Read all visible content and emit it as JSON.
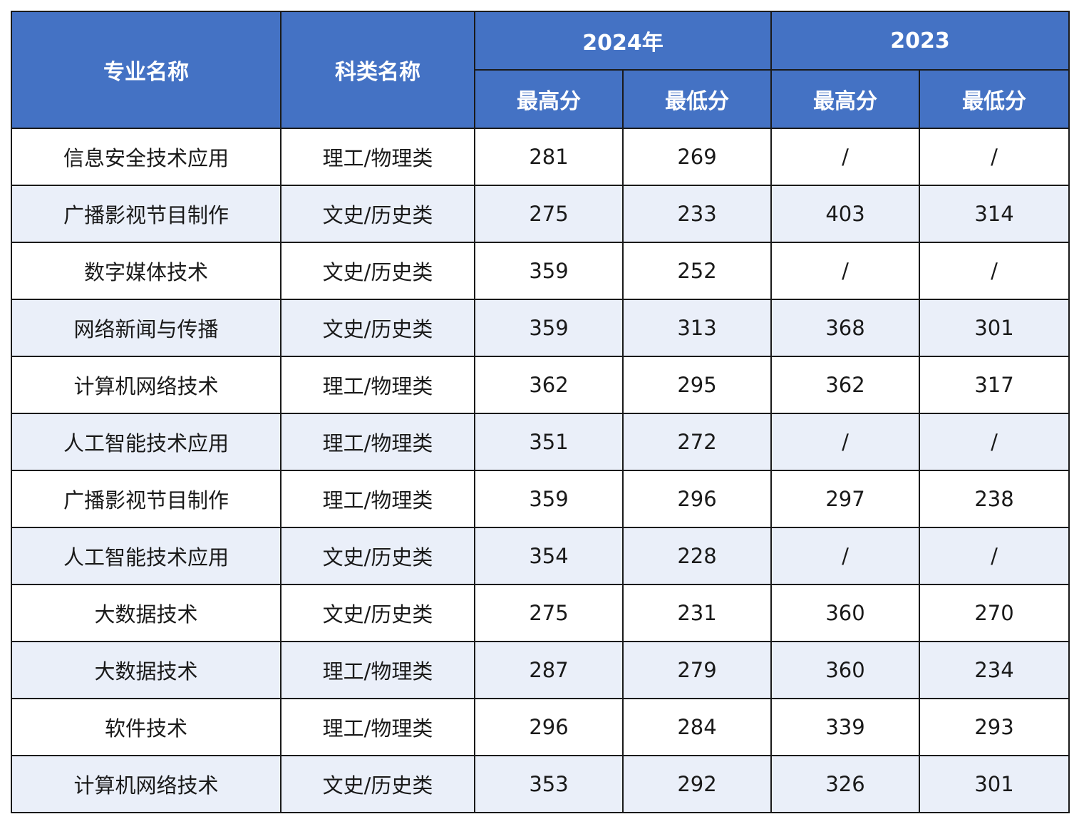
{
  "colors": {
    "header_bg": "#4472c4",
    "header_text": "#ffffff",
    "row_alt_bg": "#eaeff9",
    "border": "#1a1a1a"
  },
  "header": {
    "major": "专业名称",
    "category": "科类名称",
    "year_2024": "2024年",
    "year_2023": "2023",
    "max_2024": "最高分",
    "min_2024": "最低分",
    "max_2023": "最高分",
    "min_2023": "最低分"
  },
  "rows": [
    {
      "major": "信息安全技术应用",
      "category": "理工/物理类",
      "max_2024": "281",
      "min_2024": "269",
      "max_2023": "/",
      "min_2023": "/"
    },
    {
      "major": "广播影视节目制作",
      "category": "文史/历史类",
      "max_2024": "275",
      "min_2024": "233",
      "max_2023": "403",
      "min_2023": "314"
    },
    {
      "major": "数字媒体技术",
      "category": "文史/历史类",
      "max_2024": "359",
      "min_2024": "252",
      "max_2023": "/",
      "min_2023": "/"
    },
    {
      "major": "网络新闻与传播",
      "category": "文史/历史类",
      "max_2024": "359",
      "min_2024": "313",
      "max_2023": "368",
      "min_2023": "301"
    },
    {
      "major": "计算机网络技术",
      "category": "理工/物理类",
      "max_2024": "362",
      "min_2024": "295",
      "max_2023": "362",
      "min_2023": "317"
    },
    {
      "major": "人工智能技术应用",
      "category": "理工/物理类",
      "max_2024": "351",
      "min_2024": "272",
      "max_2023": "/",
      "min_2023": "/"
    },
    {
      "major": "广播影视节目制作",
      "category": "理工/物理类",
      "max_2024": "359",
      "min_2024": "296",
      "max_2023": "297",
      "min_2023": "238"
    },
    {
      "major": "人工智能技术应用",
      "category": "文史/历史类",
      "max_2024": "354",
      "min_2024": "228",
      "max_2023": "/",
      "min_2023": "/"
    },
    {
      "major": "大数据技术",
      "category": "文史/历史类",
      "max_2024": "275",
      "min_2024": "231",
      "max_2023": "360",
      "min_2023": "270"
    },
    {
      "major": "大数据技术",
      "category": "理工/物理类",
      "max_2024": "287",
      "min_2024": "279",
      "max_2023": "360",
      "min_2023": "234"
    },
    {
      "major": "软件技术",
      "category": "理工/物理类",
      "max_2024": "296",
      "min_2024": "284",
      "max_2023": "339",
      "min_2023": "293"
    },
    {
      "major": "计算机网络技术",
      "category": "文史/历史类",
      "max_2024": "353",
      "min_2024": "292",
      "max_2023": "326",
      "min_2023": "301"
    }
  ]
}
